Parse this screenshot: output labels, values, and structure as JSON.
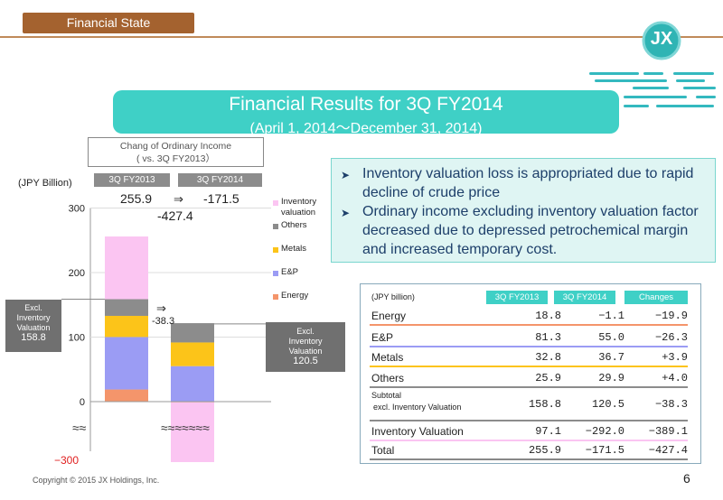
{
  "header": {
    "section": "Financial State"
  },
  "title": {
    "main": "Financial Results for 3Q FY2014",
    "sub": "(April 1, 2014〜December 31, 2014)"
  },
  "change_box": {
    "line1": "Chang of Ordinary Income",
    "line2": "( vs. 3Q FY2013）"
  },
  "columns": {
    "fy2013": "3Q FY2013",
    "fy2014": "3Q FY2014"
  },
  "unit_label": "(JPY Billion)",
  "top_values": {
    "v2013": "255.9",
    "arrow": "⇒",
    "v2014": "-171.5",
    "diff": "-427.4"
  },
  "mid_change": {
    "arrow": "⇒",
    "value": "-38.3"
  },
  "left_box": {
    "l1": "Excl.",
    "l2": "Inventory",
    "l3": "Valuation",
    "value": "158.8"
  },
  "right_box": {
    "l1": "Excl.",
    "l2": "Inventory",
    "l3": "Valuation",
    "value": "120.5"
  },
  "breaks": {
    "left": "≈≈",
    "right": "≈≈≈≈≈≈≈"
  },
  "neg_label": "−300",
  "chart_data": {
    "type": "bar",
    "stacked": true,
    "categories": [
      "3Q FY2013",
      "3Q FY2014"
    ],
    "series": [
      {
        "name": "Energy",
        "values": [
          18.8,
          -1.1
        ],
        "color": "#f4956b"
      },
      {
        "name": "E&P",
        "values": [
          81.3,
          55.0
        ],
        "color": "#9b9cf4"
      },
      {
        "name": "Metals",
        "values": [
          32.8,
          36.7
        ],
        "color": "#fcc419"
      },
      {
        "name": "Others",
        "values": [
          25.9,
          29.9
        ],
        "color": "#8c8c8c"
      },
      {
        "name": "Inventory valuation",
        "values": [
          97.1,
          -292.0
        ],
        "color": "#fbc5f2"
      }
    ],
    "yticks": [
      "300",
      "200",
      "100",
      "0"
    ],
    "ylim": [
      -300,
      300
    ],
    "legend_position": "right",
    "legend": [
      {
        "label": "Inventory valuation",
        "color": "#fbc5f2"
      },
      {
        "label": "Others",
        "color": "#8c8c8c"
      },
      {
        "label": "Metals",
        "color": "#fcc419"
      },
      {
        "label": "E&P",
        "color": "#9b9cf4"
      },
      {
        "label": "Energy",
        "color": "#f4956b"
      }
    ]
  },
  "bullets": [
    "Inventory valuation loss is appropriated due to rapid decline of crude price",
    "Ordinary income excluding inventory valuation factor decreased due to depressed petrochemical margin and increased temporary cost."
  ],
  "table": {
    "unit": "(JPY billion)",
    "headers": [
      "3Q FY2013",
      "3Q FY2014",
      "Changes"
    ],
    "rows": [
      {
        "label": "Energy",
        "v1": "18.8",
        "v2": "−1.1",
        "chg": "−19.9",
        "color": "#f4956b"
      },
      {
        "label": "E&P",
        "v1": "81.3",
        "v2": "55.0",
        "chg": "−26.3",
        "color": "#9b9cf4"
      },
      {
        "label": "Metals",
        "v1": "32.8",
        "v2": "36.7",
        "chg": "+3.9",
        "color": "#fcc419"
      },
      {
        "label": "Others",
        "v1": "25.9",
        "v2": "29.9",
        "chg": "+4.0",
        "color": "#8c8c8c"
      },
      {
        "label": "Subtotal",
        "label2": "excl. Inventory Valuation",
        "v1": "158.8",
        "v2": "120.5",
        "chg": "−38.3",
        "color": "#8c8c8c"
      },
      {
        "label": "Inventory Valuation",
        "v1": "97.1",
        "v2": "−292.0",
        "chg": "−389.1",
        "color": "#fbc5f2"
      },
      {
        "label": "Total",
        "v1": "255.9",
        "v2": "−171.5",
        "chg": "−427.4",
        "color": "#888888"
      }
    ]
  },
  "footer": {
    "copyright": "Copyright © 2015 JX Holdings, Inc.",
    "page": "6"
  },
  "logo": {
    "text": "JX"
  }
}
